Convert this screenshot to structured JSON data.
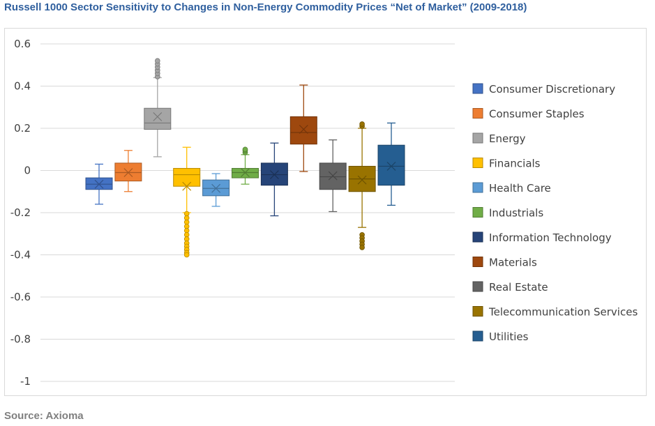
{
  "title": "Russell 1000 Sector Sensitivity to Changes in Non-Energy Commodity Prices “Net of Market” (2009-2018)",
  "source": "Source: Axioma",
  "chart_data": {
    "type": "box",
    "title": "Russell 1000 Sector Sensitivity to Changes in Non-Energy Commodity Prices “Net of Market” (2009-2018)",
    "xlabel": "",
    "ylabel": "",
    "ylim": [
      -1,
      0.6
    ],
    "yticks": [
      0.6,
      0.4,
      0.2,
      0,
      -0.2,
      -0.4,
      -0.6,
      -0.8,
      -1
    ],
    "ytick_labels": [
      "0.6",
      "0.4",
      "0.2",
      "0",
      "-0.2",
      "-0.4",
      "-0.6",
      "-0.8",
      "-1"
    ],
    "grid": true,
    "legend_position": "right",
    "series": [
      {
        "name": "Consumer Discretionary",
        "color": "#4472c4",
        "whisker_low": -0.16,
        "q1": -0.09,
        "median": -0.065,
        "q3": -0.035,
        "whisker_high": 0.03,
        "mean": -0.065,
        "outliers": []
      },
      {
        "name": "Consumer Staples",
        "color": "#ed7d31",
        "whisker_low": -0.1,
        "q1": -0.05,
        "median": -0.01,
        "q3": 0.035,
        "whisker_high": 0.095,
        "mean": -0.01,
        "outliers": []
      },
      {
        "name": "Energy",
        "color": "#a5a5a5",
        "whisker_low": 0.065,
        "q1": 0.195,
        "median": 0.225,
        "q3": 0.295,
        "whisker_high": 0.44,
        "mean": 0.255,
        "outliers": [
          0.445,
          0.46,
          0.475,
          0.49,
          0.505,
          0.52
        ]
      },
      {
        "name": "Financials",
        "color": "#ffc000",
        "whisker_low": -0.2,
        "q1": -0.075,
        "median": -0.02,
        "q3": 0.01,
        "whisker_high": 0.11,
        "mean": -0.075,
        "outliers": [
          -0.205,
          -0.225,
          -0.245,
          -0.265,
          -0.285,
          -0.305,
          -0.325,
          -0.345,
          -0.36,
          -0.375,
          -0.39,
          -0.4
        ]
      },
      {
        "name": "Health Care",
        "color": "#5b9bd5",
        "whisker_low": -0.17,
        "q1": -0.12,
        "median": -0.085,
        "q3": -0.045,
        "whisker_high": -0.015,
        "mean": -0.085,
        "outliers": []
      },
      {
        "name": "Industrials",
        "color": "#70ad47",
        "whisker_low": -0.065,
        "q1": -0.035,
        "median": -0.01,
        "q3": 0.01,
        "whisker_high": 0.075,
        "mean": -0.01,
        "outliers": [
          0.085,
          0.095,
          0.1
        ]
      },
      {
        "name": "Information Technology",
        "color": "#264478",
        "whisker_low": -0.215,
        "q1": -0.07,
        "median": -0.02,
        "q3": 0.035,
        "whisker_high": 0.13,
        "mean": -0.02,
        "outliers": []
      },
      {
        "name": "Materials",
        "color": "#9e480e",
        "whisker_low": -0.005,
        "q1": 0.125,
        "median": 0.18,
        "q3": 0.255,
        "whisker_high": 0.405,
        "mean": 0.195,
        "outliers": []
      },
      {
        "name": "Real Estate",
        "color": "#636363",
        "whisker_low": -0.195,
        "q1": -0.09,
        "median": -0.03,
        "q3": 0.035,
        "whisker_high": 0.145,
        "mean": -0.025,
        "outliers": []
      },
      {
        "name": "Telecommunication Services",
        "color": "#997300",
        "whisker_low": -0.27,
        "q1": -0.1,
        "median": -0.04,
        "q3": 0.02,
        "whisker_high": 0.2,
        "mean": -0.045,
        "outliers": [
          0.21,
          0.22,
          -0.305,
          -0.32,
          -0.335,
          -0.35,
          -0.365
        ]
      },
      {
        "name": "Utilities",
        "color": "#255e91",
        "whisker_low": -0.165,
        "q1": -0.07,
        "median": 0.02,
        "q3": 0.12,
        "whisker_high": 0.225,
        "mean": 0.02,
        "outliers": []
      }
    ]
  }
}
